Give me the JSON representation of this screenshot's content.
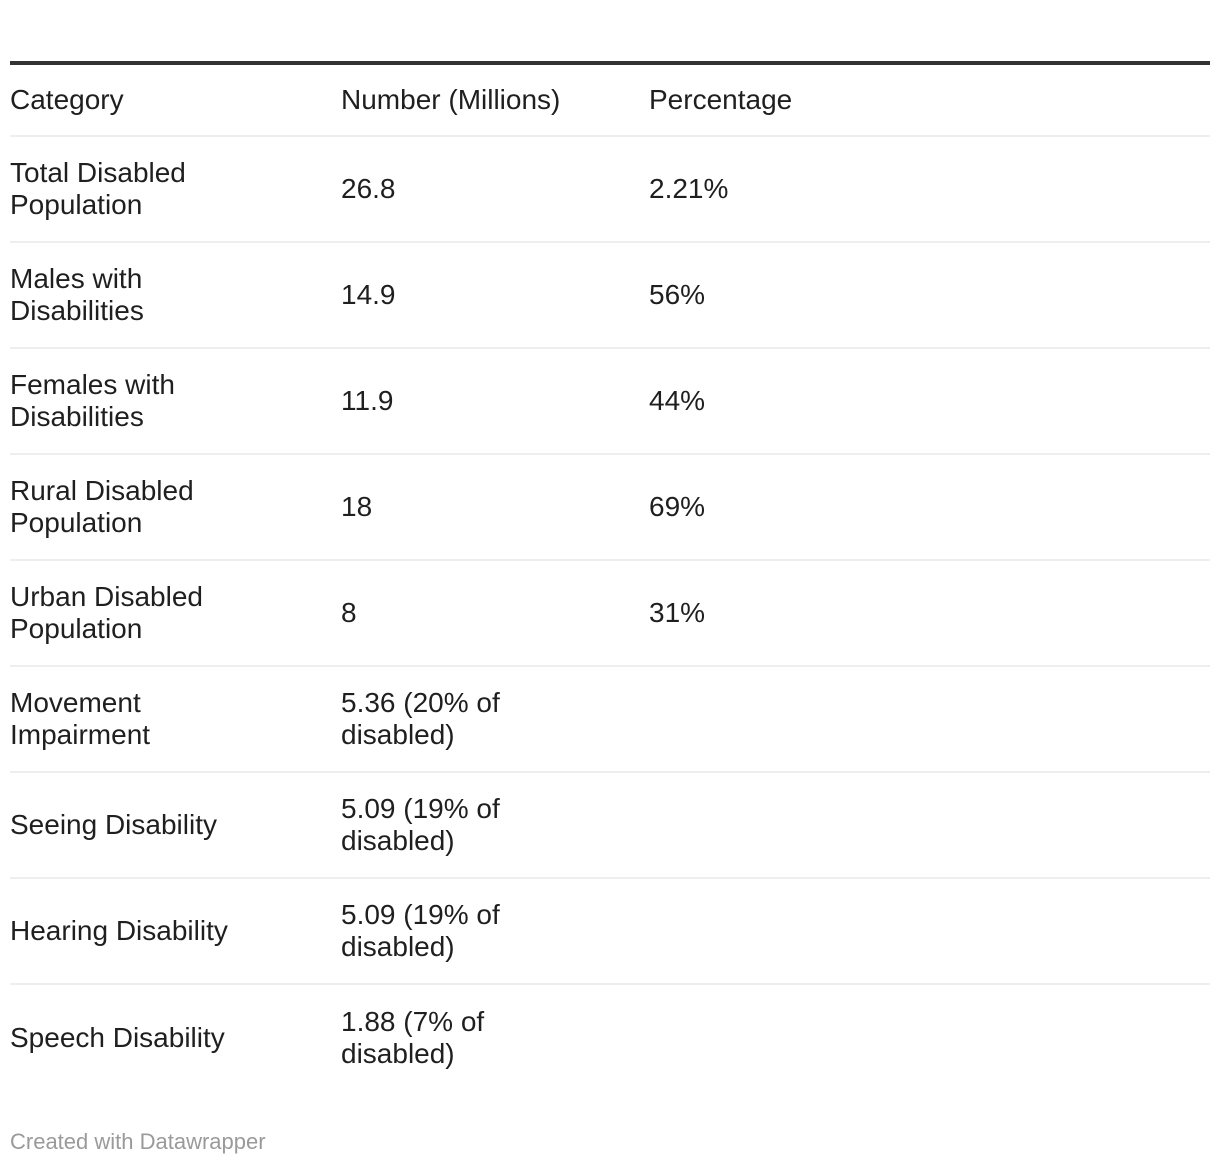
{
  "colors": {
    "background": "#ffffff",
    "text": "#1f1f1f",
    "top_rule": "#333333",
    "row_separator": "#eeeeee",
    "credit_gray": "#9a9a9a"
  },
  "table": {
    "columns": {
      "category": "Category",
      "number": "Number (Millions)",
      "percentage": "Percentage"
    },
    "rows": [
      {
        "category": "Total Disabled\nPopulation",
        "number": "26.8",
        "percentage": "2.21%"
      },
      {
        "category": "Males with\nDisabilities",
        "number": "14.9",
        "percentage": "56%"
      },
      {
        "category": "Females with\nDisabilities",
        "number": "11.9",
        "percentage": "44%"
      },
      {
        "category": "Rural Disabled\nPopulation",
        "number": "18",
        "percentage": "69%"
      },
      {
        "category": "Urban Disabled\nPopulation",
        "number": "8",
        "percentage": "31%"
      },
      {
        "category": "Movement\nImpairment",
        "number": "5.36 (20% of\ndisabled)",
        "percentage": ""
      },
      {
        "category": "Seeing Disability",
        "number": "5.09 (19% of\ndisabled)",
        "percentage": ""
      },
      {
        "category": "Hearing Disability",
        "number": "5.09 (19% of\ndisabled)",
        "percentage": ""
      },
      {
        "category": "Speech Disability",
        "number": "1.88 (7% of\ndisabled)",
        "percentage": ""
      }
    ]
  },
  "chart_data": {
    "type": "table",
    "title": "",
    "columns": [
      "Category",
      "Number (Millions)",
      "Percentage"
    ],
    "rows": [
      [
        "Total Disabled Population",
        "26.8",
        "2.21%"
      ],
      [
        "Males with Disabilities",
        "14.9",
        "56%"
      ],
      [
        "Females with Disabilities",
        "11.9",
        "44%"
      ],
      [
        "Rural Disabled Population",
        "18",
        "69%"
      ],
      [
        "Urban Disabled Population",
        "8",
        "31%"
      ],
      [
        "Movement Impairment",
        "5.36 (20% of disabled)",
        ""
      ],
      [
        "Seeing Disability",
        "5.09 (19% of disabled)",
        ""
      ],
      [
        "Hearing Disability",
        "5.09 (19% of disabled)",
        ""
      ],
      [
        "Speech Disability",
        "1.88 (7% of disabled)",
        ""
      ]
    ],
    "layout_hints": {
      "grid": "horizontal row separators only",
      "header_rule": "thick dark top border",
      "value_alignment": "left"
    }
  },
  "footer": {
    "credit": "Created with Datawrapper"
  }
}
